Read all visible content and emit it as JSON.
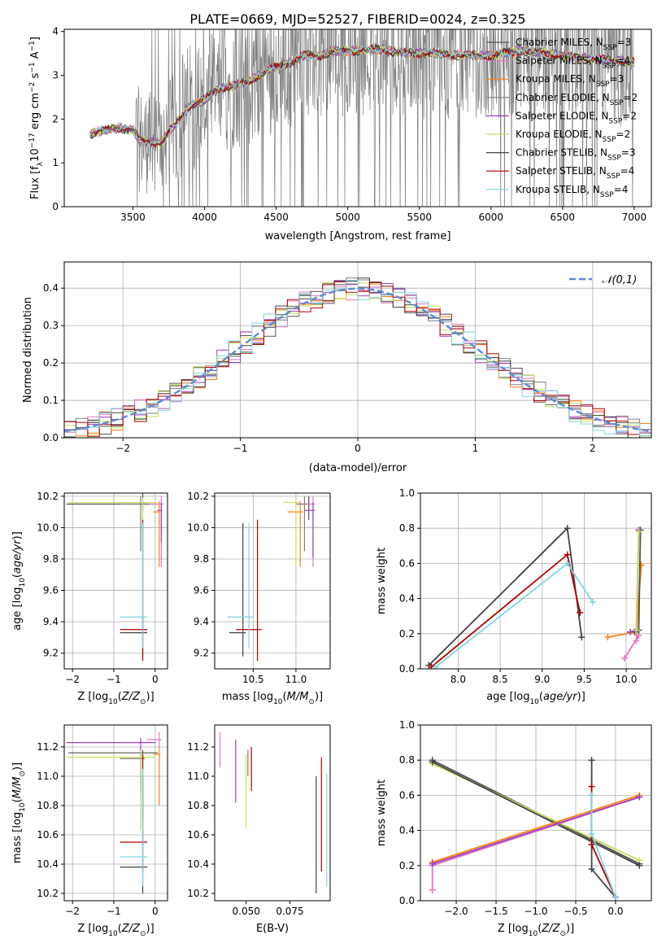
{
  "title": "PLATE=0669, MJD=52527, FIBERID=0024, z=0.325",
  "colors": {
    "Chabrier MILES": "#555555",
    "Salpeter MILES": "#e377c2",
    "Kroupa MILES": "#ff7f0e",
    "Chabrier ELODIE": "#7f7f7f",
    "Salpeter ELODIE": "#9b3fc1",
    "Kroupa ELODIE": "#c6e05a",
    "Chabrier STELIB": "#444444",
    "Salpeter STELIB": "#b00000",
    "Kroupa STELIB": "#7fd6e0",
    "data": "#808080",
    "normal": "#5b8ad6",
    "grid": "#b0b0b0"
  },
  "chart_data": [
    {
      "type": "line",
      "name": "spectrum",
      "xlabel": "wavelength [Angstrom, rest frame]",
      "ylabel": "Flux [f_λ 10^-17 erg cm^-2 s^-1 A^-1]",
      "xlim": [
        3020,
        7120
      ],
      "ylim": [
        0,
        4.05
      ],
      "xticks": [
        3500,
        4000,
        4500,
        5000,
        5500,
        6000,
        6500,
        7000
      ],
      "yticks": [
        0,
        1,
        2,
        3,
        4
      ],
      "grid": false,
      "legend_position": "upper right",
      "legend": [
        {
          "label": "Chabrier MILES, N_SSP=3",
          "key": "Chabrier MILES"
        },
        {
          "label": "Salpeter MILES, N_SSP=4",
          "key": "Salpeter MILES"
        },
        {
          "label": "Kroupa MILES, N_SSP=3",
          "key": "Kroupa MILES"
        },
        {
          "label": "Chabrier ELODIE, N_SSP=2",
          "key": "Chabrier ELODIE"
        },
        {
          "label": "Salpeter ELODIE, N_SSP=2",
          "key": "Salpeter ELODIE"
        },
        {
          "label": "Kroupa ELODIE, N_SSP=2",
          "key": "Kroupa ELODIE"
        },
        {
          "label": "Chabrier STELIB, N_SSP=3",
          "key": "Chabrier STELIB"
        },
        {
          "label": "Salpeter STELIB, N_SSP=4",
          "key": "Salpeter STELIB"
        },
        {
          "label": "Kroupa STELIB, N_SSP=4",
          "key": "Kroupa STELIB"
        }
      ],
      "data_range": [
        3200,
        7000
      ],
      "model_continuum": {
        "x": [
          3200,
          3300,
          3400,
          3500,
          3550,
          3700,
          3750,
          3800,
          3900,
          4000,
          4100,
          4200,
          4300,
          4400,
          4500,
          4600,
          4700,
          4800,
          4900,
          5000,
          5200,
          5400,
          5600,
          5800,
          6000,
          6200,
          6400,
          6600,
          6800,
          7000
        ],
        "y": [
          1.65,
          1.75,
          1.8,
          1.75,
          1.5,
          1.45,
          1.7,
          1.9,
          2.3,
          2.45,
          2.7,
          2.75,
          2.85,
          3.05,
          3.2,
          3.3,
          3.45,
          3.45,
          3.55,
          3.55,
          3.6,
          3.5,
          3.5,
          3.45,
          3.45,
          3.55,
          3.5,
          3.4,
          3.35,
          3.3
        ]
      },
      "model_series_keys": [
        "Chabrier MILES",
        "Salpeter MILES",
        "Kroupa MILES",
        "Chabrier ELODIE",
        "Salpeter ELODIE",
        "Kroupa ELODIE",
        "Chabrier STELIB",
        "Salpeter STELIB",
        "Kroupa STELIB"
      ]
    },
    {
      "type": "histogram",
      "name": "residuals",
      "xlabel": "(data-model)/error",
      "ylabel": "Normed distribution",
      "xlim": [
        -2.5,
        2.5
      ],
      "ylim": [
        0,
        0.47
      ],
      "xticks": [
        -2,
        -1,
        0,
        1,
        2
      ],
      "yticks": [
        0.0,
        0.1,
        0.2,
        0.3,
        0.4
      ],
      "grid": true,
      "legend_position": "upper right",
      "legend": [
        {
          "label": "𝒩(0,1)",
          "key": "normal",
          "style": "dashed"
        }
      ],
      "bin_width": 0.1,
      "bin_start": -2.5,
      "series_keys": [
        "Chabrier MILES",
        "Salpeter MILES",
        "Kroupa MILES",
        "Chabrier ELODIE",
        "Salpeter ELODIE",
        "Kroupa ELODIE",
        "Chabrier STELIB",
        "Salpeter STELIB",
        "Kroupa STELIB"
      ]
    },
    {
      "type": "scatter",
      "name": "Z-age",
      "xlabel": "Z [log10(Z/Z_sun)]",
      "ylabel": "age [log10(age/yr)]",
      "xlim": [
        -2.2,
        0.3
      ],
      "ylim": [
        9.1,
        10.22
      ],
      "xticks": [
        -2,
        -1,
        0
      ],
      "yticks": [
        9.2,
        9.4,
        9.6,
        9.8,
        10.0,
        10.2
      ],
      "grid": true,
      "points": [
        {
          "key": "Chabrier MILES",
          "x": -0.3,
          "y": 10.15,
          "xerr": 1.85,
          "yerr": [
            0.05,
            0.2
          ]
        },
        {
          "key": "Salpeter MILES",
          "x": 0.15,
          "y": 10.15,
          "xerr": 0.3,
          "yerr": [
            0.4,
            0.05
          ]
        },
        {
          "key": "Kroupa MILES",
          "x": 0.1,
          "y": 10.1,
          "xerr": 0.15,
          "yerr": [
            0.35,
            0.07
          ]
        },
        {
          "key": "Chabrier ELODIE",
          "x": -0.35,
          "y": 10.15,
          "xerr": 0.5,
          "yerr": [
            0.3,
            0.05
          ]
        },
        {
          "key": "Salpeter ELODIE",
          "x": 0.15,
          "y": 10.11,
          "xerr": 0.1,
          "yerr": [
            0.2,
            0.05
          ]
        },
        {
          "key": "Kroupa ELODIE",
          "x": -0.3,
          "y": 10.16,
          "xerr": 1.8,
          "yerr": [
            0.2,
            0.03
          ]
        },
        {
          "key": "Chabrier STELIB",
          "x": -0.3,
          "y": 9.33,
          "xerr": 0.55,
          "yerr": [
            0.15,
            0.7
          ]
        },
        {
          "key": "Salpeter STELIB",
          "x": -0.3,
          "y": 9.35,
          "xerr": 0.55,
          "yerr": [
            0.2,
            0.7
          ]
        },
        {
          "key": "Kroupa STELIB",
          "x": -0.3,
          "y": 9.43,
          "xerr": 0.55,
          "yerr": [
            0.2,
            0.6
          ]
        }
      ]
    },
    {
      "type": "scatter",
      "name": "mass-age",
      "xlabel": "mass [log10(M/M_sun)]",
      "ylabel": "",
      "xlim": [
        10.05,
        11.4
      ],
      "ylim": [
        9.1,
        10.22
      ],
      "xticks": [
        10.5,
        11.0
      ],
      "yticks": [
        9.2,
        9.4,
        9.6,
        9.8,
        10.0,
        10.2
      ],
      "grid": true,
      "points": [
        {
          "key": "Chabrier MILES",
          "x": 11.15,
          "y": 10.15,
          "xerr": 0.15,
          "yerr": [
            0.1,
            0.05
          ]
        },
        {
          "key": "Salpeter MILES",
          "x": 11.2,
          "y": 10.15,
          "xerr": 0.1,
          "yerr": [
            0.4,
            0.05
          ]
        },
        {
          "key": "Kroupa MILES",
          "x": 11.05,
          "y": 10.1,
          "xerr": 0.15,
          "yerr": [
            0.35,
            0.07
          ]
        },
        {
          "key": "Chabrier ELODIE",
          "x": 11.1,
          "y": 10.15,
          "xerr": 0.1,
          "yerr": [
            0.3,
            0.05
          ]
        },
        {
          "key": "Salpeter ELODIE",
          "x": 11.2,
          "y": 10.11,
          "xerr": 0.1,
          "yerr": [
            0.3,
            0.05
          ]
        },
        {
          "key": "Kroupa ELODIE",
          "x": 11.0,
          "y": 10.16,
          "xerr": 0.15,
          "yerr": [
            0.4,
            0.03
          ]
        },
        {
          "key": "Chabrier STELIB",
          "x": 10.38,
          "y": 9.33,
          "xerr": 0.16,
          "yerr": [
            0.15,
            0.7
          ]
        },
        {
          "key": "Salpeter STELIB",
          "x": 10.55,
          "y": 9.35,
          "xerr": 0.25,
          "yerr": [
            0.2,
            0.7
          ]
        },
        {
          "key": "Kroupa STELIB",
          "x": 10.45,
          "y": 9.43,
          "xerr": 0.25,
          "yerr": [
            0.2,
            0.6
          ]
        }
      ]
    },
    {
      "type": "line",
      "name": "age-weight",
      "xlabel": "age [log10(age/yr)]",
      "ylabel": "mass weight",
      "xlim": [
        7.55,
        10.3
      ],
      "ylim": [
        0,
        1.0
      ],
      "xticks": [
        8.0,
        8.5,
        9.0,
        9.5,
        10.0
      ],
      "yticks": [
        0.0,
        0.2,
        0.4,
        0.6,
        0.8,
        1.0
      ],
      "grid": true,
      "series": [
        {
          "key": "Chabrier STELIB",
          "x": [
            7.65,
            9.3,
            9.47
          ],
          "y": [
            0.02,
            0.8,
            0.18
          ]
        },
        {
          "key": "Salpeter STELIB",
          "x": [
            7.68,
            9.3,
            9.45
          ],
          "y": [
            0.01,
            0.65,
            0.32
          ]
        },
        {
          "key": "Kroupa STELIB",
          "x": [
            7.73,
            9.3,
            9.6
          ],
          "y": [
            0.01,
            0.6,
            0.38
          ]
        },
        {
          "key": "Salpeter MILES",
          "x": [
            9.98,
            10.15,
            10.12,
            10.17
          ],
          "y": [
            0.06,
            0.19,
            0.16,
            0.59
          ]
        },
        {
          "key": "Kroupa MILES",
          "x": [
            9.78,
            10.12,
            10.18
          ],
          "y": [
            0.18,
            0.21,
            0.59
          ]
        },
        {
          "key": "Chabrier MILES",
          "x": [
            10.1,
            10.15,
            10.17
          ],
          "y": [
            0.21,
            0.22,
            0.79
          ]
        },
        {
          "key": "Salpeter ELODIE",
          "x": [
            10.05,
            10.12,
            10.15
          ],
          "y": [
            0.21,
            0.22,
            0.79
          ]
        },
        {
          "key": "Kroupa ELODIE",
          "x": [
            10.12,
            10.15
          ],
          "y": [
            0.22,
            0.78
          ]
        }
      ]
    },
    {
      "type": "scatter",
      "name": "Z-mass",
      "xlabel": "Z [log10(Z/Z_sun)]",
      "ylabel": "mass [log10(M/M_sun)]",
      "xlim": [
        -2.2,
        0.3
      ],
      "ylim": [
        10.15,
        11.35
      ],
      "xticks": [
        -2,
        -1,
        0
      ],
      "yticks": [
        10.2,
        10.4,
        10.6,
        10.8,
        11.0,
        11.2
      ],
      "grid": true,
      "points": [
        {
          "key": "Chabrier MILES",
          "x": -0.3,
          "y": 11.16,
          "xerr": 1.8,
          "yerr": [
            0.45,
            0.02
          ]
        },
        {
          "key": "Salpeter MILES",
          "x": 0.1,
          "y": 11.25,
          "xerr": 0.3,
          "yerr": [
            0.05,
            0.05
          ]
        },
        {
          "key": "Kroupa MILES",
          "x": 0.1,
          "y": 11.15,
          "xerr": 0.15,
          "yerr": [
            0.35,
            0.05
          ]
        },
        {
          "key": "Chabrier ELODIE",
          "x": -0.35,
          "y": 11.12,
          "xerr": 0.5,
          "yerr": [
            0.2,
            0.05
          ]
        },
        {
          "key": "Salpeter ELODIE",
          "x": -0.35,
          "y": 11.23,
          "xerr": 1.8,
          "yerr": [
            0.35,
            0.03
          ]
        },
        {
          "key": "Kroupa ELODIE",
          "x": -0.35,
          "y": 11.13,
          "xerr": 1.8,
          "yerr": [
            0.5,
            0.05
          ]
        },
        {
          "key": "Chabrier STELIB",
          "x": -0.3,
          "y": 10.38,
          "xerr": 0.55,
          "yerr": [
            0.18,
            0.62
          ]
        },
        {
          "key": "Salpeter STELIB",
          "x": -0.3,
          "y": 10.55,
          "xerr": 0.55,
          "yerr": [
            0.2,
            0.6
          ]
        },
        {
          "key": "Kroupa STELIB",
          "x": -0.3,
          "y": 10.45,
          "xerr": 0.55,
          "yerr": [
            0.2,
            0.6
          ]
        }
      ]
    },
    {
      "type": "scatter",
      "name": "EBV-mass",
      "xlabel": "E(B-V)",
      "ylabel": "",
      "xlim": [
        0.032,
        0.098
      ],
      "ylim": [
        10.15,
        11.35
      ],
      "xticks": [
        0.05,
        0.075
      ],
      "yticks": [
        10.2,
        10.4,
        10.6,
        10.8,
        11.0,
        11.2
      ],
      "grid": false,
      "points": [
        {
          "key": "Salpeter MILES",
          "x": 0.035,
          "y": 11.18,
          "yerr": [
            0.12,
            0.12
          ]
        },
        {
          "key": "Salpeter ELODIE",
          "x": 0.044,
          "y": 11.05,
          "yerr": [
            0.23,
            0.2
          ]
        },
        {
          "key": "Kroupa ELODIE",
          "x": 0.05,
          "y": 10.95,
          "yerr": [
            0.3,
            0.2
          ]
        },
        {
          "key": "Chabrier ELODIE",
          "x": 0.051,
          "y": 11.1,
          "yerr": [
            0.1,
            0.08
          ]
        },
        {
          "key": "Salpeter STELIB",
          "x": 0.053,
          "y": 11.0,
          "yerr": [
            0.1,
            0.2
          ]
        },
        {
          "key": "Chabrier STELIB",
          "x": 0.09,
          "y": 10.6,
          "yerr": [
            0.4,
            0.4
          ]
        },
        {
          "key": "Salpeter STELIB",
          "x": 0.093,
          "y": 10.75,
          "yerr": [
            0.4,
            0.38
          ]
        },
        {
          "key": "Kroupa STELIB",
          "x": 0.096,
          "y": 10.62,
          "yerr": [
            0.37,
            0.4
          ]
        }
      ]
    },
    {
      "type": "line",
      "name": "Z-weight",
      "xlabel": "Z [log10(Z/Z_sun)]",
      "ylabel": "mass weight",
      "xlim": [
        -2.45,
        0.45
      ],
      "ylim": [
        0,
        1.0
      ],
      "xticks": [
        -2.0,
        -1.5,
        -1.0,
        -0.5,
        0.0
      ],
      "yticks": [
        0.0,
        0.2,
        0.4,
        0.6,
        0.8,
        1.0
      ],
      "grid": true,
      "series": [
        {
          "key": "Chabrier MILES",
          "x": [
            -2.3,
            0.3
          ],
          "y": [
            0.8,
            0.21
          ]
        },
        {
          "key": "Kroupa ELODIE",
          "x": [
            -2.3,
            0.3
          ],
          "y": [
            0.78,
            0.23
          ]
        },
        {
          "key": "Chabrier STELIB",
          "x": [
            -2.3,
            0.3
          ],
          "y": [
            0.79,
            0.2
          ]
        },
        {
          "key": "Salpeter MILES",
          "x": [
            -2.3,
            -2.3,
            0.3
          ],
          "y": [
            0.06,
            0.2,
            0.59
          ]
        },
        {
          "key": "Kroupa MILES",
          "x": [
            -2.3,
            0.3
          ],
          "y": [
            0.22,
            0.6
          ]
        },
        {
          "key": "Salpeter ELODIE",
          "x": [
            -2.3,
            0.3
          ],
          "y": [
            0.21,
            0.59
          ]
        },
        {
          "key": "Chabrier STELIB",
          "x": [
            -0.3,
            -0.3,
            0.0
          ],
          "y": [
            0.8,
            0.18,
            0.02
          ]
        },
        {
          "key": "Salpeter STELIB",
          "x": [
            -0.3,
            -0.3,
            0.0
          ],
          "y": [
            0.65,
            0.32,
            0.02
          ]
        },
        {
          "key": "Kroupa STELIB",
          "x": [
            -0.3,
            -0.3,
            0.0
          ],
          "y": [
            0.6,
            0.38,
            0.02
          ]
        }
      ]
    }
  ]
}
